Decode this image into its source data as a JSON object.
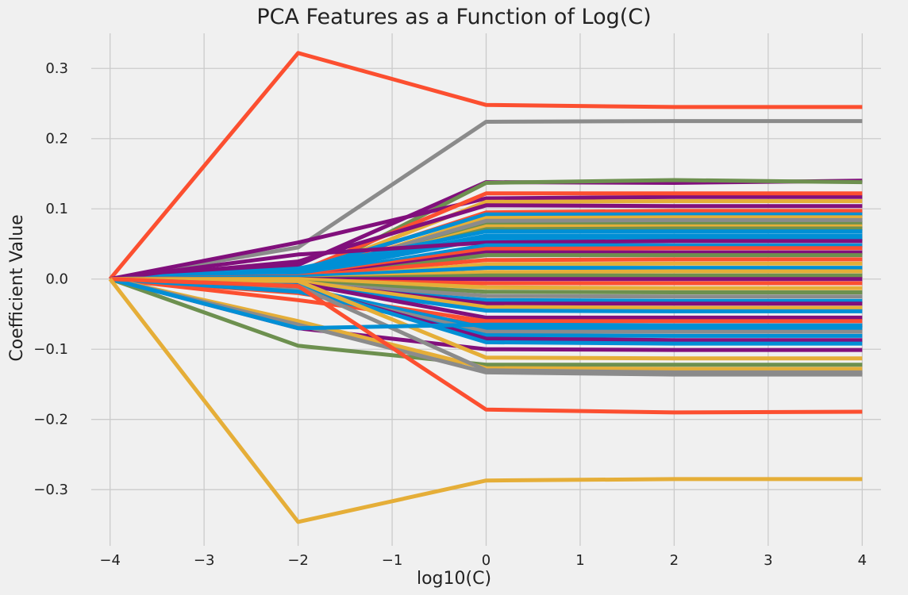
{
  "chart_data": {
    "type": "line",
    "title": "PCA Features as a Function of Log(C)",
    "xlabel": "log10(C)",
    "ylabel": "Coefficient Value",
    "x": [
      -4,
      -2,
      0,
      2,
      4
    ],
    "xlim": [
      -4.2,
      4.2
    ],
    "ylim": [
      -0.38,
      0.35
    ],
    "xticks": [
      -4,
      -3,
      -2,
      -1,
      0,
      1,
      2,
      3,
      4
    ],
    "xtick_labels": [
      "−4",
      "−3",
      "−2",
      "−1",
      "0",
      "1",
      "2",
      "3",
      "4"
    ],
    "yticks": [
      -0.3,
      -0.2,
      -0.1,
      0.0,
      0.1,
      0.2,
      0.3
    ],
    "ytick_labels": [
      "−0.3",
      "−0.2",
      "−0.1",
      "0.0",
      "0.1",
      "0.2",
      "0.3"
    ],
    "grid": true,
    "palette": [
      "#008fd5",
      "#fc4f30",
      "#e5ae38",
      "#6d904f",
      "#8b8b8b",
      "#810f7c"
    ],
    "series": [
      {
        "color": "#fc4f30",
        "values": [
          0,
          0.322,
          0.248,
          0.245,
          0.245
        ]
      },
      {
        "color": "#8b8b8b",
        "values": [
          0,
          0.045,
          0.224,
          0.225,
          0.225
        ]
      },
      {
        "color": "#810f7c",
        "values": [
          0,
          0.02,
          0.138,
          0.137,
          0.14
        ]
      },
      {
        "color": "#6d904f",
        "values": [
          0,
          0.0,
          0.137,
          0.141,
          0.138
        ]
      },
      {
        "color": "#810f7c",
        "values": [
          0,
          0.052,
          0.115,
          0.117,
          0.117
        ]
      },
      {
        "color": "#fc4f30",
        "values": [
          0,
          0.01,
          0.122,
          0.122,
          0.122
        ]
      },
      {
        "color": "#e5ae38",
        "values": [
          0,
          0.005,
          0.11,
          0.111,
          0.111
        ]
      },
      {
        "color": "#810f7c",
        "values": [
          0,
          0.025,
          0.105,
          0.104,
          0.104
        ]
      },
      {
        "color": "#fc4f30",
        "values": [
          0,
          0.008,
          0.095,
          0.097,
          0.097
        ]
      },
      {
        "color": "#008fd5",
        "values": [
          0,
          0.012,
          0.092,
          0.092,
          0.092
        ]
      },
      {
        "color": "#e5ae38",
        "values": [
          0,
          0.003,
          0.087,
          0.088,
          0.088
        ]
      },
      {
        "color": "#6d904f",
        "values": [
          0,
          0.004,
          0.08,
          0.08,
          0.08
        ]
      },
      {
        "color": "#8b8b8b",
        "values": [
          0,
          0.005,
          0.083,
          0.084,
          0.084
        ]
      },
      {
        "color": "#e5ae38",
        "values": [
          0,
          0.002,
          0.075,
          0.075,
          0.075
        ]
      },
      {
        "color": "#6d904f",
        "values": [
          0,
          0.006,
          0.071,
          0.072,
          0.072
        ]
      },
      {
        "color": "#008fd5",
        "values": [
          0,
          0.015,
          0.068,
          0.068,
          0.068
        ]
      },
      {
        "color": "#008fd5",
        "values": [
          0,
          0.01,
          0.062,
          0.062,
          0.062
        ]
      },
      {
        "color": "#008fd5",
        "values": [
          0,
          0.008,
          0.057,
          0.057,
          0.057
        ]
      },
      {
        "color": "#810f7c",
        "values": [
          0,
          0.035,
          0.052,
          0.054,
          0.054
        ]
      },
      {
        "color": "#008fd5",
        "values": [
          0,
          0.005,
          0.048,
          0.048,
          0.048
        ]
      },
      {
        "color": "#fc4f30",
        "values": [
          0,
          0.003,
          0.043,
          0.044,
          0.044
        ]
      },
      {
        "color": "#810f7c",
        "values": [
          0,
          0.002,
          0.038,
          0.038,
          0.038
        ]
      },
      {
        "color": "#6d904f",
        "values": [
          0,
          0.0,
          0.034,
          0.034,
          0.034
        ]
      },
      {
        "color": "#fc4f30",
        "values": [
          0,
          0.004,
          0.027,
          0.028,
          0.028
        ]
      },
      {
        "color": "#e5ae38",
        "values": [
          0,
          0.0,
          0.021,
          0.022,
          0.022
        ]
      },
      {
        "color": "#008fd5",
        "values": [
          0,
          0.003,
          0.016,
          0.016,
          0.016
        ]
      },
      {
        "color": "#e5ae38",
        "values": [
          0,
          0.0,
          0.01,
          0.011,
          0.011
        ]
      },
      {
        "color": "#6d904f",
        "values": [
          0,
          0.0,
          0.005,
          0.005,
          0.005
        ]
      },
      {
        "color": "#810f7c",
        "values": [
          0,
          0.0,
          0.0,
          0.0,
          0.0
        ]
      },
      {
        "color": "#fc4f30",
        "values": [
          0,
          -0.002,
          -0.006,
          -0.006,
          -0.006
        ]
      },
      {
        "color": "#e5ae38",
        "values": [
          0,
          0.0,
          -0.012,
          -0.013,
          -0.013
        ]
      },
      {
        "color": "#6d904f",
        "values": [
          0,
          -0.004,
          -0.018,
          -0.019,
          -0.019
        ]
      },
      {
        "color": "#8b8b8b",
        "values": [
          0,
          -0.006,
          -0.024,
          -0.025,
          -0.025
        ]
      },
      {
        "color": "#008fd5",
        "values": [
          0,
          -0.01,
          -0.03,
          -0.031,
          -0.031
        ]
      },
      {
        "color": "#810f7c",
        "values": [
          0,
          -0.005,
          -0.035,
          -0.035,
          -0.035
        ]
      },
      {
        "color": "#e5ae38",
        "values": [
          0,
          -0.003,
          -0.04,
          -0.041,
          -0.041
        ]
      },
      {
        "color": "#008fd5",
        "values": [
          0,
          -0.008,
          -0.045,
          -0.046,
          -0.046
        ]
      },
      {
        "color": "#810f7c",
        "values": [
          0,
          -0.006,
          -0.055,
          -0.055,
          -0.055
        ]
      },
      {
        "color": "#fc4f30",
        "values": [
          0,
          -0.02,
          -0.06,
          -0.06,
          -0.06
        ]
      },
      {
        "color": "#fc4f30",
        "values": [
          0,
          -0.03,
          -0.065,
          -0.066,
          -0.066
        ]
      },
      {
        "color": "#008fd5",
        "values": [
          0,
          -0.012,
          -0.07,
          -0.07,
          -0.07
        ]
      },
      {
        "color": "#8b8b8b",
        "values": [
          0,
          -0.015,
          -0.075,
          -0.075,
          -0.075
        ]
      },
      {
        "color": "#008fd5",
        "values": [
          0,
          -0.018,
          -0.08,
          -0.081,
          -0.081
        ]
      },
      {
        "color": "#810f7c",
        "values": [
          0,
          -0.01,
          -0.085,
          -0.087,
          -0.087
        ]
      },
      {
        "color": "#008fd5",
        "values": [
          0,
          -0.009,
          -0.09,
          -0.092,
          -0.092
        ]
      },
      {
        "color": "#810f7c",
        "values": [
          0,
          -0.07,
          -0.1,
          -0.101,
          -0.101
        ]
      },
      {
        "color": "#e5ae38",
        "values": [
          0,
          -0.003,
          -0.112,
          -0.113,
          -0.113
        ]
      },
      {
        "color": "#6d904f",
        "values": [
          0,
          -0.095,
          -0.122,
          -0.122,
          -0.122
        ]
      },
      {
        "color": "#e5ae38",
        "values": [
          0,
          -0.06,
          -0.127,
          -0.128,
          -0.128
        ]
      },
      {
        "color": "#8b8b8b",
        "values": [
          0,
          -0.065,
          -0.133,
          -0.136,
          -0.136
        ]
      },
      {
        "color": "#8b8b8b",
        "values": [
          0,
          -0.01,
          -0.13,
          -0.133,
          -0.133
        ]
      },
      {
        "color": "#008fd5",
        "values": [
          0,
          -0.07,
          -0.065,
          -0.066,
          -0.066
        ]
      },
      {
        "color": "#fc4f30",
        "values": [
          0,
          -0.01,
          -0.186,
          -0.19,
          -0.189
        ]
      },
      {
        "color": "#e5ae38",
        "values": [
          0,
          -0.346,
          -0.287,
          -0.285,
          -0.285
        ]
      }
    ]
  }
}
